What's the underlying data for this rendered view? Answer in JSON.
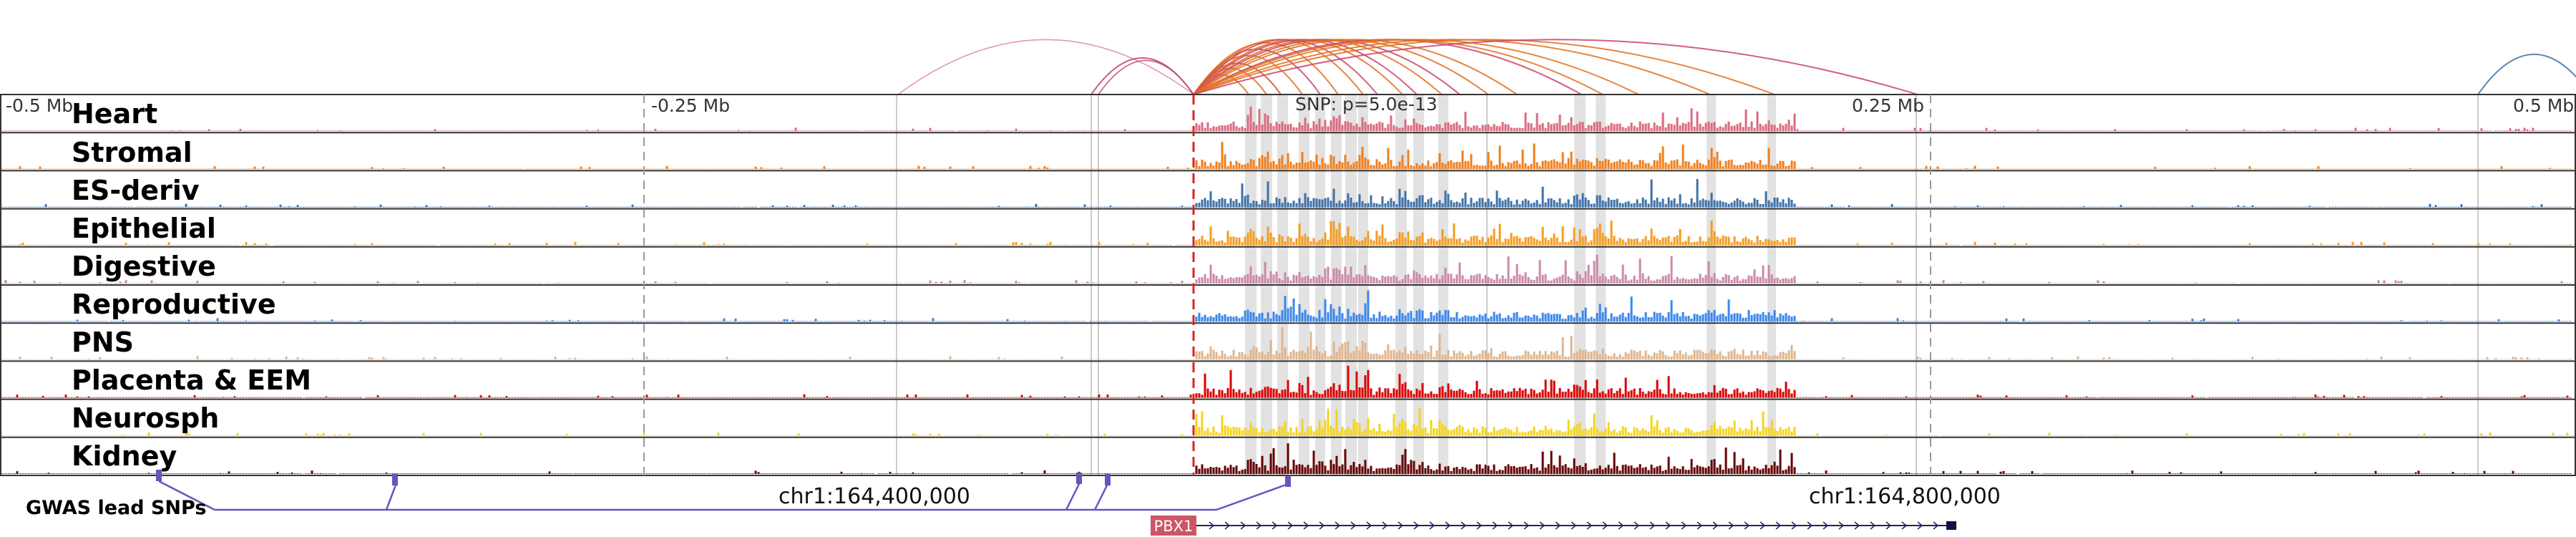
{
  "axis": {
    "ticks": [
      {
        "label": "-0.5 Mb",
        "pos": 0
      },
      {
        "label": "-0.25 Mb",
        "pos": 0.25
      },
      {
        "label": "0.25 Mb",
        "pos": 0.75
      },
      {
        "label": "0.5 Mb",
        "pos": 1
      }
    ],
    "snp_label": "SNP: p=5.0e-13"
  },
  "colors": {
    "grid": "#999999",
    "snp_line": "#dd2222",
    "highlight": "#d8d8d8",
    "track_border": "#333333",
    "gwas": "#6655bb",
    "gene": "#cc5566",
    "gene_strand": "#222266"
  },
  "tracks": [
    {
      "name": "Heart",
      "color": "#d96b7f"
    },
    {
      "name": "Stromal",
      "color": "#f07f1e"
    },
    {
      "name": "ES-deriv",
      "color": "#3d71a8"
    },
    {
      "name": "Epithelial",
      "color": "#f59c1e"
    },
    {
      "name": "Digestive",
      "color": "#cc88a8"
    },
    {
      "name": "Reproductive",
      "color": "#3a86ee"
    },
    {
      "name": "PNS",
      "color": "#dfb58d"
    },
    {
      "name": "Placenta & EEM",
      "color": "#dd0000"
    },
    {
      "name": "Neurosph",
      "color": "#f4d41a"
    },
    {
      "name": "Kidney",
      "color": "#660000"
    }
  ],
  "coordinates": [
    {
      "label": "chr1:164,400,000"
    },
    {
      "label": "chr1:164,800,000"
    }
  ],
  "gwas": {
    "label": "GWAS lead SNPs"
  },
  "gene": {
    "label": "PBX1"
  }
}
